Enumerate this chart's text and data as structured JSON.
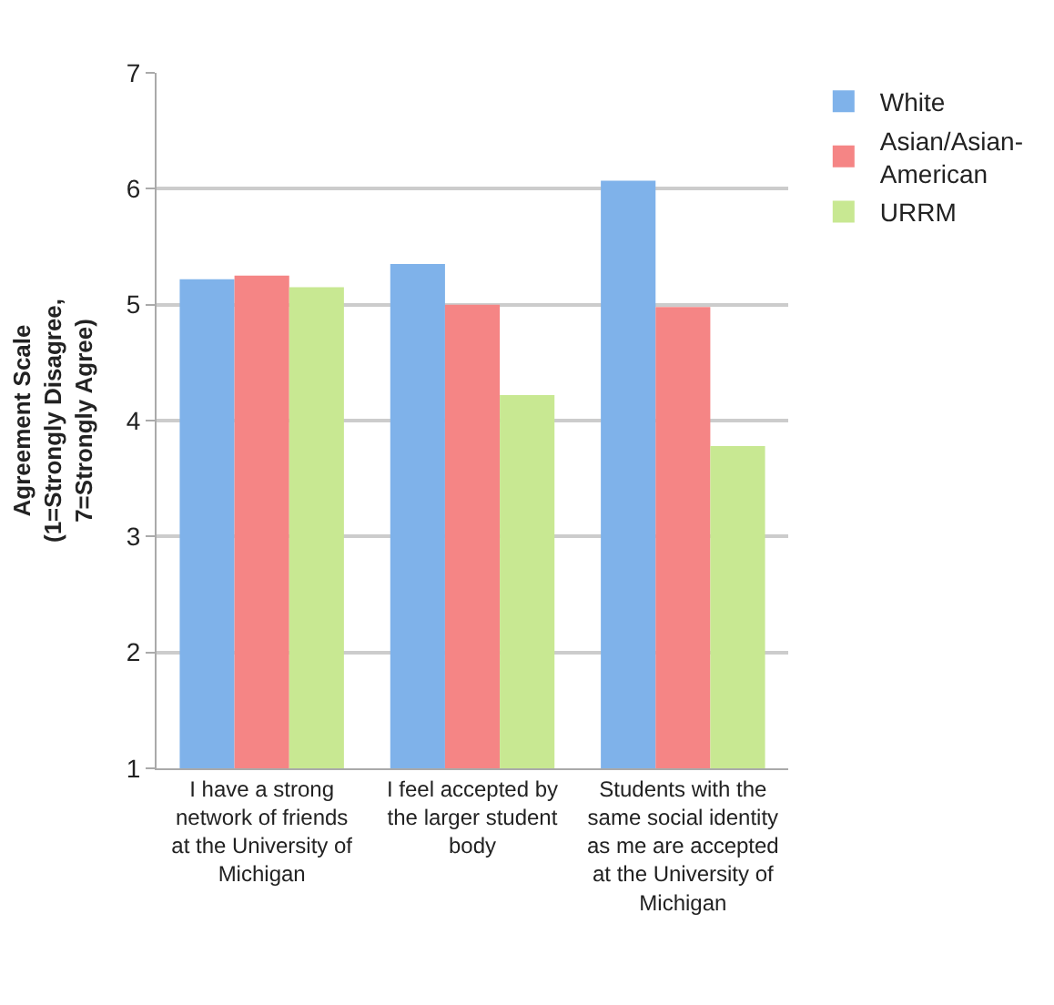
{
  "chart_data": {
    "type": "bar",
    "ylabel": "Agreement Scale (1=Strongly Disagree, 7=Strongly Agree)",
    "categories": [
      "I have a strong network of friends at the University of Michigan",
      "I feel accepted by the larger student body",
      "Students with the same social identity as me are accepted at the University of Michigan"
    ],
    "series": [
      {
        "name": "White",
        "color": "#7fb2ea",
        "values": [
          5.22,
          5.35,
          6.07
        ]
      },
      {
        "name": "Asian/Asian-American",
        "color": "#f58585",
        "values": [
          5.25,
          5.0,
          4.98
        ]
      },
      {
        "name": "URRM",
        "color": "#c8e892",
        "values": [
          5.15,
          4.22,
          3.78
        ]
      }
    ],
    "ylim": [
      1,
      7
    ],
    "yticks": [
      1,
      2,
      3,
      4,
      5,
      6,
      7
    ],
    "grid": "y",
    "legend": "top right"
  }
}
